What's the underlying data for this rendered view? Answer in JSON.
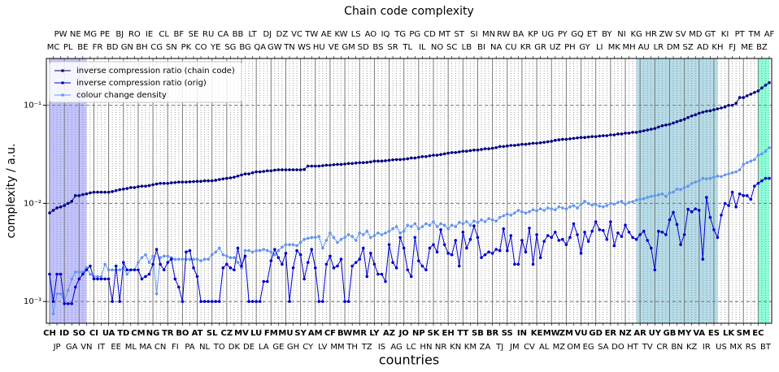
{
  "chart_data": {
    "type": "line",
    "title": "Chain code complexity",
    "xlabel": "countries",
    "ylabel": "complexity / a.u.",
    "yscale": "log",
    "ylim": [
      0.0006,
      0.3
    ],
    "yticks": [
      {
        "value": 0.001,
        "label": "10⁻³"
      },
      {
        "value": 0.01,
        "label": "10⁻²"
      },
      {
        "value": 0.1,
        "label": "10⁻¹"
      }
    ],
    "xgrid": true,
    "ygrid": true,
    "legend": "upper left",
    "categories": [
      "CH",
      "MC",
      "JP",
      "PW",
      "ID",
      "PL",
      "GA",
      "NE",
      "SO",
      "BE",
      "VN",
      "MG",
      "CI",
      "FR",
      "IT",
      "PE",
      "UA",
      "BD",
      "EE",
      "BJ",
      "TD",
      "GN",
      "ML",
      "RO",
      "CM",
      "BH",
      "MA",
      "IE",
      "NG",
      "CG",
      "CN",
      "CL",
      "TR",
      "SN",
      "FI",
      "BF",
      "BO",
      "PK",
      "PA",
      "SE",
      "AT",
      "CO",
      "NL",
      "RU",
      "SL",
      "YE",
      "TO",
      "CA",
      "CZ",
      "SG",
      "DK",
      "BB",
      "MV",
      "BG",
      "DE",
      "LT",
      "LU",
      "QA",
      "LA",
      "DJ",
      "FM",
      "GW",
      "GE",
      "DZ",
      "MU",
      "TN",
      "GH",
      "VC",
      "SY",
      "WS",
      "CY",
      "TW",
      "AM",
      "HU",
      "LV",
      "AE",
      "CF",
      "VE",
      "MM",
      "KW",
      "BW",
      "GM",
      "TH",
      "LS",
      "MR",
      "SD",
      "TZ",
      "AO",
      "LY",
      "BS",
      "IS",
      "IQ",
      "AZ",
      "SR",
      "AG",
      "TG",
      "JO",
      "TL",
      "LC",
      "PG",
      "NP",
      "IL",
      "HN",
      "CD",
      "SK",
      "NO",
      "NR",
      "MT",
      "EH",
      "SC",
      "KN",
      "ST",
      "TT",
      "LB",
      "KM",
      "SI",
      "SB",
      "BI",
      "ZA",
      "MN",
      "BR",
      "NA",
      "TJ",
      "RW",
      "SS",
      "CU",
      "JM",
      "BA",
      "IN",
      "KR",
      "CV",
      "KP",
      "KE",
      "GR",
      "AL",
      "UG",
      "MW",
      "UZ",
      "MZ",
      "PY",
      "ZM",
      "PH",
      "OM",
      "GQ",
      "VU",
      "GY",
      "EG",
      "ET",
      "GD",
      "LI",
      "SA",
      "BY",
      "ER",
      "MK",
      "DO",
      "NI",
      "NZ",
      "MH",
      "HT",
      "KG",
      "AR",
      "AU",
      "TV",
      "HR",
      "UY",
      "LR",
      "CR",
      "ZW",
      "GB",
      "DM",
      "BN",
      "SV",
      "MY",
      "SZ",
      "KZ",
      "MD",
      "VA",
      "AD",
      "IR",
      "GT",
      "ES",
      "KH",
      "US",
      "KI",
      "LK",
      "FJ",
      "MX",
      "PT",
      "SM",
      "ME",
      "RS",
      "TM",
      "EC",
      "BZ",
      "BT",
      "AF"
    ],
    "spans": [
      {
        "from": "CH",
        "to": "VN",
        "color": "#bbbbff"
      },
      {
        "from": "KG",
        "to": "KH",
        "color": "#add8e6"
      },
      {
        "from": "EC",
        "to": "AF",
        "color": "#7fffd4"
      }
    ],
    "series": [
      {
        "name": "inverse compression ratio (chain code)",
        "color": "#000080",
        "values": [
          0.008,
          0.0085,
          0.009,
          0.0092,
          0.0095,
          0.01,
          0.0105,
          0.012,
          0.012,
          0.0123,
          0.0125,
          0.0128,
          0.013,
          0.013,
          0.013,
          0.013,
          0.013,
          0.0132,
          0.0135,
          0.0138,
          0.014,
          0.0142,
          0.0145,
          0.0145,
          0.0148,
          0.015,
          0.015,
          0.0152,
          0.0155,
          0.0158,
          0.016,
          0.016,
          0.016,
          0.0162,
          0.0163,
          0.0165,
          0.0165,
          0.0165,
          0.0166,
          0.0167,
          0.0168,
          0.0168,
          0.017,
          0.017,
          0.017,
          0.0172,
          0.0175,
          0.0178,
          0.018,
          0.0182,
          0.0185,
          0.019,
          0.0195,
          0.02,
          0.02,
          0.0205,
          0.021,
          0.021,
          0.0212,
          0.0215,
          0.0215,
          0.0218,
          0.022,
          0.022,
          0.022,
          0.022,
          0.022,
          0.022,
          0.022,
          0.0222,
          0.024,
          0.024,
          0.024,
          0.024,
          0.0242,
          0.0245,
          0.0245,
          0.0248,
          0.025,
          0.025,
          0.0252,
          0.0255,
          0.0255,
          0.0258,
          0.026,
          0.026,
          0.0262,
          0.0265,
          0.027,
          0.027,
          0.027,
          0.0272,
          0.0275,
          0.0278,
          0.028,
          0.028,
          0.0282,
          0.0285,
          0.029,
          0.029,
          0.0295,
          0.03,
          0.03,
          0.0305,
          0.031,
          0.031,
          0.0315,
          0.032,
          0.0325,
          0.033,
          0.033,
          0.0335,
          0.034,
          0.034,
          0.0345,
          0.035,
          0.035,
          0.0355,
          0.036,
          0.036,
          0.0365,
          0.037,
          0.038,
          0.038,
          0.0385,
          0.039,
          0.039,
          0.0395,
          0.04,
          0.04,
          0.0405,
          0.041,
          0.041,
          0.0415,
          0.042,
          0.0425,
          0.043,
          0.044,
          0.0445,
          0.045,
          0.045,
          0.0455,
          0.046,
          0.0465,
          0.047,
          0.047,
          0.0475,
          0.048,
          0.048,
          0.0485,
          0.049,
          0.049,
          0.05,
          0.05,
          0.051,
          0.051,
          0.052,
          0.052,
          0.053,
          0.053,
          0.054,
          0.055,
          0.056,
          0.057,
          0.058,
          0.06,
          0.062,
          0.063,
          0.064,
          0.066,
          0.068,
          0.07,
          0.072,
          0.075,
          0.078,
          0.08,
          0.083,
          0.085,
          0.087,
          0.088,
          0.09,
          0.092,
          0.094,
          0.096,
          0.1,
          0.1,
          0.105,
          0.12,
          0.12,
          0.125,
          0.13,
          0.135,
          0.14,
          0.15,
          0.16,
          0.17
        ]
      },
      {
        "name": "inverse compression ratio (orig)",
        "color": "#0000cd",
        "values": [
          0.0019,
          0.001,
          0.0019,
          0.0019,
          0.00095,
          0.00095,
          0.00095,
          0.0014,
          0.0017,
          0.0019,
          0.0021,
          0.0023,
          0.0017,
          0.0017,
          0.0017,
          0.0017,
          0.0017,
          0.001,
          0.0023,
          0.001,
          0.0025,
          0.0021,
          0.0021,
          0.0021,
          0.0021,
          0.0017,
          0.0018,
          0.0019,
          0.0024,
          0.0034,
          0.0024,
          0.0021,
          0.0025,
          0.0027,
          0.0017,
          0.0014,
          0.001,
          0.0032,
          0.0033,
          0.0022,
          0.0018,
          0.001,
          0.001,
          0.001,
          0.001,
          0.001,
          0.001,
          0.0022,
          0.0024,
          0.0022,
          0.0021,
          0.0035,
          0.0023,
          0.0029,
          0.001,
          0.001,
          0.001,
          0.001,
          0.0016,
          0.0016,
          0.0026,
          0.0034,
          0.0028,
          0.0024,
          0.0031,
          0.001,
          0.0022,
          0.0033,
          0.003,
          0.0017,
          0.0025,
          0.0034,
          0.0022,
          0.001,
          0.001,
          0.0024,
          0.0029,
          0.0022,
          0.0023,
          0.0027,
          0.001,
          0.001,
          0.0023,
          0.0025,
          0.0027,
          0.0035,
          0.0018,
          0.0031,
          0.0024,
          0.0019,
          0.0019,
          0.0016,
          0.0038,
          0.0025,
          0.0022,
          0.0045,
          0.0035,
          0.0021,
          0.0018,
          0.0045,
          0.0026,
          0.0023,
          0.0021,
          0.0035,
          0.0038,
          0.0032,
          0.0054,
          0.0038,
          0.0031,
          0.003,
          0.0042,
          0.0023,
          0.0051,
          0.0035,
          0.0043,
          0.0059,
          0.0045,
          0.0028,
          0.003,
          0.0032,
          0.0031,
          0.0034,
          0.0033,
          0.0055,
          0.0033,
          0.0047,
          0.0024,
          0.0024,
          0.0042,
          0.0032,
          0.0056,
          0.0024,
          0.0048,
          0.0028,
          0.0041,
          0.0047,
          0.0045,
          0.0051,
          0.0042,
          0.0043,
          0.0038,
          0.0045,
          0.0062,
          0.0048,
          0.0031,
          0.0051,
          0.0041,
          0.0052,
          0.0065,
          0.0054,
          0.0053,
          0.0043,
          0.0065,
          0.0037,
          0.005,
          0.0046,
          0.006,
          0.0051,
          0.0045,
          0.0043,
          0.0048,
          0.0052,
          0.0042,
          0.0035,
          0.0021,
          0.0052,
          0.0051,
          0.0048,
          0.0068,
          0.0081,
          0.0061,
          0.0038,
          0.0048,
          0.0087,
          0.0082,
          0.0088,
          0.0085,
          0.0027,
          0.0115,
          0.0072,
          0.0054,
          0.0045,
          0.0076,
          0.01,
          0.0095,
          0.013,
          0.0092,
          0.0125,
          0.012,
          0.012,
          0.011,
          0.015,
          0.016,
          0.017,
          0.018,
          0.018
        ]
      },
      {
        "name": "colour change density",
        "color": "#6495ed",
        "values": [
          0.0019,
          0.00075,
          0.0012,
          0.0012,
          0.001,
          0.0013,
          0.0017,
          0.002,
          0.002,
          0.002,
          0.0022,
          0.0019,
          0.0018,
          0.0018,
          0.0018,
          0.0024,
          0.0021,
          0.0021,
          0.0021,
          0.0021,
          0.0022,
          0.0019,
          0.0021,
          0.0021,
          0.0025,
          0.0028,
          0.003,
          0.0025,
          0.0029,
          0.0012,
          0.0028,
          0.0029,
          0.0029,
          0.0028,
          0.0027,
          0.0027,
          0.0027,
          0.0027,
          0.0027,
          0.0027,
          0.0027,
          0.0026,
          0.0027,
          0.0027,
          0.003,
          0.0032,
          0.0035,
          0.003,
          0.0029,
          0.0028,
          0.0028,
          0.0025,
          0.0022,
          0.0033,
          0.0033,
          0.0032,
          0.0033,
          0.0033,
          0.0034,
          0.0033,
          0.0032,
          0.003,
          0.0033,
          0.0036,
          0.0038,
          0.0038,
          0.0038,
          0.0037,
          0.004,
          0.0043,
          0.0044,
          0.0045,
          0.0045,
          0.0046,
          0.0035,
          0.0042,
          0.005,
          0.0045,
          0.004,
          0.0043,
          0.0045,
          0.0048,
          0.0046,
          0.0042,
          0.005,
          0.0048,
          0.0052,
          0.0045,
          0.0047,
          0.005,
          0.0048,
          0.005,
          0.0052,
          0.0055,
          0.0058,
          0.005,
          0.0052,
          0.006,
          0.0058,
          0.0062,
          0.0055,
          0.0058,
          0.0062,
          0.006,
          0.0065,
          0.0058,
          0.0062,
          0.006,
          0.0055,
          0.006,
          0.0058,
          0.0064,
          0.0062,
          0.0065,
          0.006,
          0.0066,
          0.0064,
          0.0068,
          0.0065,
          0.007,
          0.0068,
          0.0066,
          0.0072,
          0.0075,
          0.0078,
          0.0076,
          0.008,
          0.0085,
          0.0082,
          0.008,
          0.0082,
          0.0086,
          0.0084,
          0.0088,
          0.0085,
          0.009,
          0.0088,
          0.0086,
          0.0092,
          0.009,
          0.0088,
          0.0092,
          0.0095,
          0.009,
          0.0098,
          0.0105,
          0.01,
          0.0096,
          0.0098,
          0.0094,
          0.0092,
          0.0095,
          0.01,
          0.0098,
          0.0102,
          0.0105,
          0.0098,
          0.0102,
          0.0104,
          0.0108,
          0.011,
          0.0112,
          0.0115,
          0.0118,
          0.012,
          0.0122,
          0.0125,
          0.0118,
          0.0128,
          0.013,
          0.014,
          0.0138,
          0.0145,
          0.015,
          0.016,
          0.0165,
          0.017,
          0.018,
          0.0178,
          0.018,
          0.0185,
          0.019,
          0.0188,
          0.0195,
          0.02,
          0.0205,
          0.021,
          0.022,
          0.025,
          0.026,
          0.027,
          0.028,
          0.031,
          0.032,
          0.034,
          0.037
        ]
      }
    ]
  }
}
